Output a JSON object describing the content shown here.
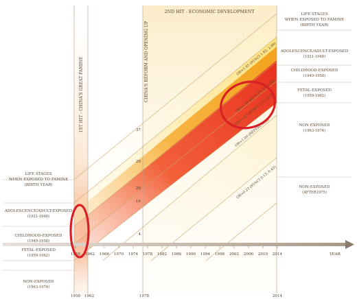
{
  "title_second_hit": "2ND HIT - ECONOMIC DEVELOPMENT",
  "title_first_hit": "1ST HIT - CHINA'S GREAT FAMINE",
  "title_reform": "CHINA'S REFORM AND OPENING UP",
  "axis_label": "YEAR",
  "year_ticks": [
    "1958",
    "1962",
    "1966",
    "1970",
    "1974",
    "1978",
    "1982",
    "1986",
    "1990",
    "1994",
    "1998",
    "2002",
    "2006",
    "2010",
    "2014"
  ],
  "bottom_years": [
    "1958",
    "1962",
    "1978",
    "2014"
  ],
  "age_ticks": [
    "4",
    "16",
    "20",
    "29",
    "37"
  ],
  "right_legend": {
    "header": [
      "LIFE STAGES",
      "WHEN EXPOSED TO FAMINE",
      "(BIRTH YEAR)"
    ],
    "groups": [
      {
        "name": "ADOLESCENCE/ADULT-EXPOSED",
        "years": "(1921-1948)"
      },
      {
        "name": "CHILDHOOD-EXPOSED",
        "years": "(1949-1958)"
      },
      {
        "name": "FETAL-EXPOSED",
        "years": "(1959-1962)"
      },
      {
        "name": "NON-EXPOSED",
        "years": "(1963-1974)"
      },
      {
        "name": "NON-EXPOSED",
        "years": "(AFTER1975)"
      }
    ]
  },
  "left_legend": {
    "header": [
      "LIFE STAGES",
      "WHEN EXPOSED TO FAMINE",
      "(BIRTH YEAR)"
    ],
    "groups": [
      {
        "name": "ADOLESCENCE/ADULT-EXPOSED",
        "years": "(1921-1948)"
      },
      {
        "name": "CHILDHOOD-EXPOSED",
        "years": "(1949-1958)"
      },
      {
        "name": "FETAL-EXPOSED",
        "years": "(1959-1962)"
      },
      {
        "name": "NON-EXPOSED",
        "years": "(1963-1974)"
      }
    ]
  },
  "band_labels": [
    "OR=1.95 (95%CI 1.85, 2.98)",
    "OR=1.90 (95%CI 1.25, 2.89)",
    "OR=1.63 (95%CI 1.13, 2.35)",
    "OR=1.00 (REFERENCE)",
    "OR=0.23 (95%CI 0.13, 0.43)"
  ],
  "colors": {
    "red_band": "#e8321e",
    "orange_band": "#f4a21c",
    "yellow_band": "#fde27a",
    "highlight_ring": "#d81f26",
    "axis": "#8a7a6a"
  }
}
